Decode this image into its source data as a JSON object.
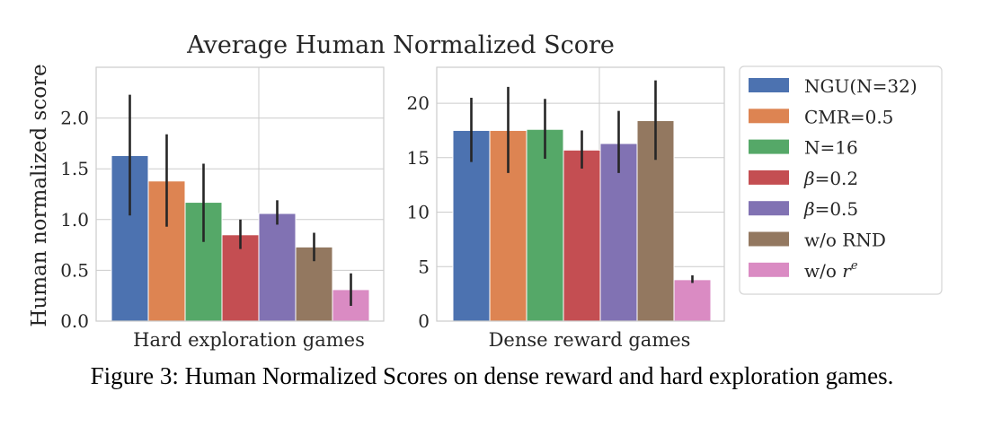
{
  "figure": {
    "title": "Average Human Normalized Score",
    "ylabel": "Human normalized score",
    "caption": "Figure 3: Human Normalized Scores on dense reward and hard exploration games."
  },
  "colors": {
    "NGU(N=32)": "#4c72b0",
    "CMR=0.5": "#dd8452",
    "N=16": "#55a868",
    "beta=0.2": "#c44e52",
    "beta=0.5": "#8172b3",
    "w/o RND": "#937860",
    "w/o re": "#da8bc3"
  },
  "legend": [
    {
      "key": "NGU(N=32)",
      "label": "NGU(N=32)",
      "kind": "text"
    },
    {
      "key": "CMR=0.5",
      "label": "CMR=0.5",
      "kind": "text"
    },
    {
      "key": "N=16",
      "label": "N=16",
      "kind": "text"
    },
    {
      "key": "beta=0.2",
      "label": "=0.2",
      "symbol": "β",
      "kind": "beta"
    },
    {
      "key": "beta=0.5",
      "label": "=0.5",
      "symbol": "β",
      "kind": "beta"
    },
    {
      "key": "w/o RND",
      "label": "w/o RND",
      "kind": "text"
    },
    {
      "key": "w/o re",
      "label": "w/o ",
      "symbol": "r",
      "sup": "e",
      "kind": "r"
    }
  ],
  "chart_data": [
    {
      "type": "bar",
      "xlabel": "Hard exploration games",
      "ylim": [
        0,
        2.5
      ],
      "yticks": [
        0.0,
        0.5,
        1.0,
        1.5,
        2.0
      ],
      "ytick_labels": [
        "0.0",
        "0.5",
        "1.0",
        "1.5",
        "2.0"
      ],
      "grid": true,
      "series": [
        {
          "key": "NGU(N=32)",
          "value": 1.63,
          "err_low": 1.04,
          "err_high": 2.23
        },
        {
          "key": "CMR=0.5",
          "value": 1.38,
          "err_low": 0.93,
          "err_high": 1.84
        },
        {
          "key": "N=16",
          "value": 1.17,
          "err_low": 0.78,
          "err_high": 1.55
        },
        {
          "key": "beta=0.2",
          "value": 0.85,
          "err_low": 0.71,
          "err_high": 1.0
        },
        {
          "key": "beta=0.5",
          "value": 1.06,
          "err_low": 0.95,
          "err_high": 1.19
        },
        {
          "key": "w/o RND",
          "value": 0.73,
          "err_low": 0.59,
          "err_high": 0.87
        },
        {
          "key": "w/o re",
          "value": 0.31,
          "err_low": 0.15,
          "err_high": 0.47
        }
      ]
    },
    {
      "type": "bar",
      "xlabel": "Dense reward games",
      "ylim": [
        0,
        23.3
      ],
      "yticks": [
        0,
        5,
        10,
        15,
        20
      ],
      "ytick_labels": [
        "0",
        "5",
        "10",
        "15",
        "20"
      ],
      "grid": true,
      "series": [
        {
          "key": "NGU(N=32)",
          "value": 17.5,
          "err_low": 14.6,
          "err_high": 20.5
        },
        {
          "key": "CMR=0.5",
          "value": 17.5,
          "err_low": 13.6,
          "err_high": 21.5
        },
        {
          "key": "N=16",
          "value": 17.6,
          "err_low": 14.9,
          "err_high": 20.4
        },
        {
          "key": "beta=0.2",
          "value": 15.7,
          "err_low": 14.0,
          "err_high": 17.5
        },
        {
          "key": "beta=0.5",
          "value": 16.3,
          "err_low": 13.6,
          "err_high": 19.3
        },
        {
          "key": "w/o RND",
          "value": 18.4,
          "err_low": 14.8,
          "err_high": 22.1
        },
        {
          "key": "w/o re",
          "value": 3.8,
          "err_low": 3.5,
          "err_high": 4.2
        }
      ]
    }
  ]
}
